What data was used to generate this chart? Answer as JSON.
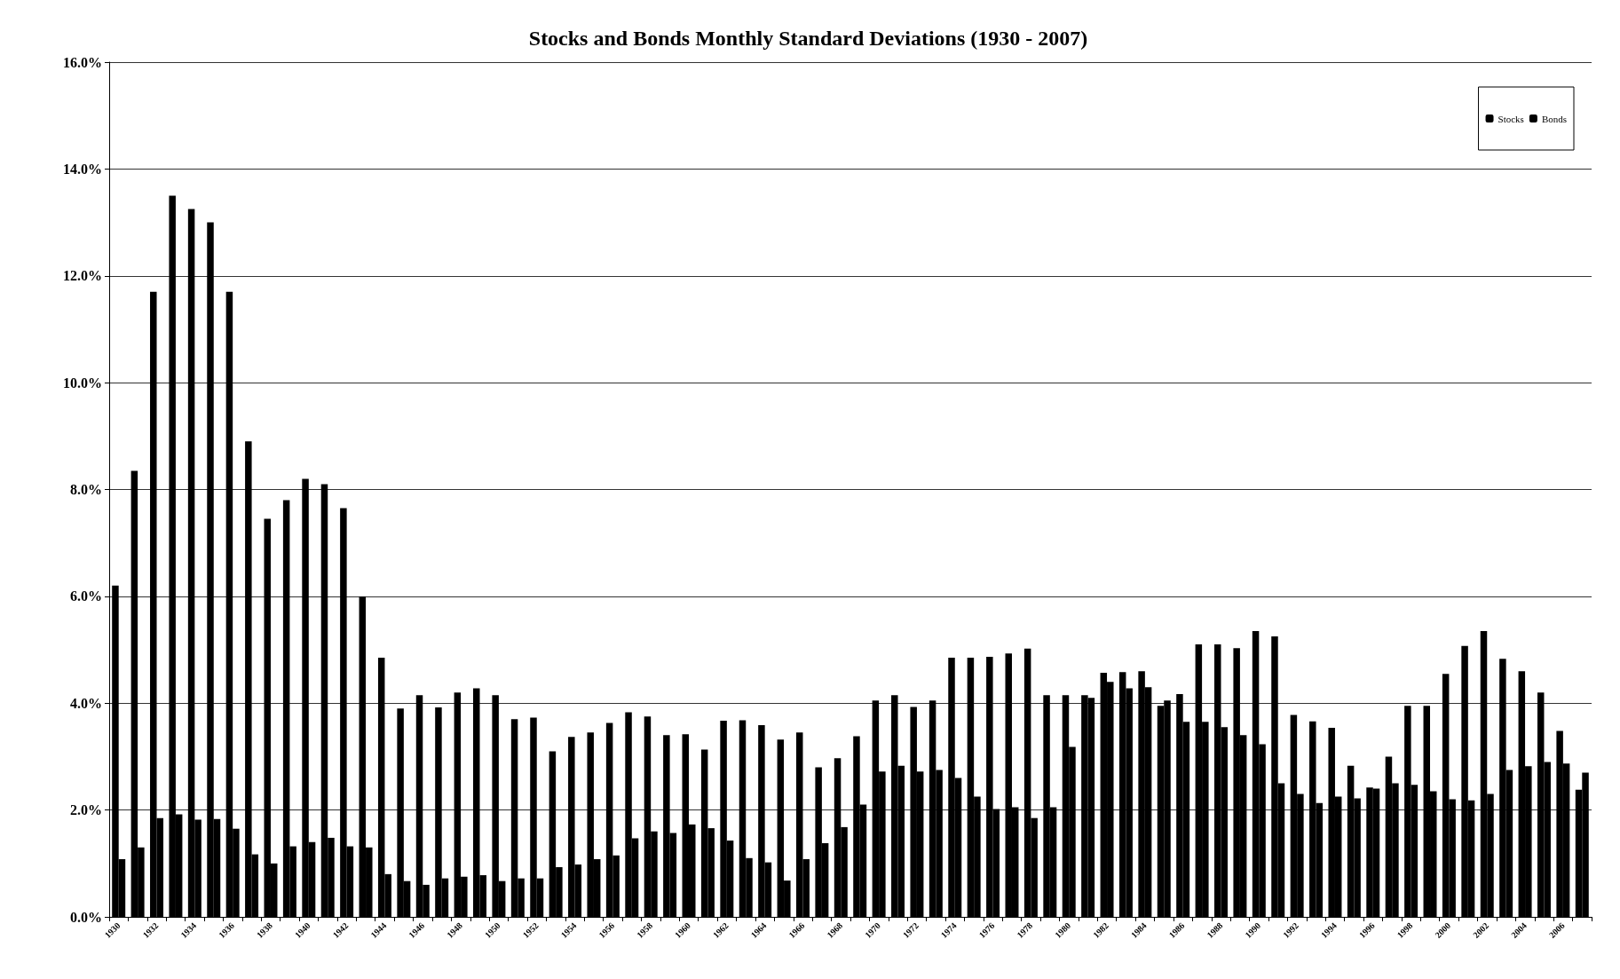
{
  "chart_data": {
    "type": "bar",
    "title": "Stocks and Bonds Monthly Standard Deviations (1930 - 2007)",
    "categories": [
      "1930",
      null,
      "1932",
      null,
      "1934",
      null,
      "1936",
      null,
      "1938",
      null,
      "1940",
      null,
      "1942",
      null,
      "1944",
      null,
      "1946",
      null,
      "1948",
      null,
      "1950",
      null,
      "1952",
      null,
      "1954",
      null,
      "1956",
      null,
      "1958",
      null,
      "1960",
      null,
      "1962",
      null,
      "1964",
      null,
      "1966",
      null,
      "1968",
      null,
      "1970",
      null,
      "1972",
      null,
      "1974",
      null,
      "1976",
      null,
      "1978",
      null,
      "1980",
      null,
      "1982",
      null,
      "1984",
      null,
      "1986",
      null,
      "1988",
      null,
      "1990",
      null,
      "1992",
      null,
      "1994",
      null,
      "1996",
      null,
      "1998",
      null,
      "2000",
      null,
      "2002",
      null,
      "2004",
      null,
      "2006",
      null
    ],
    "series": [
      {
        "name": "Stocks",
        "color": "#000000",
        "values": [
          6.2,
          8.35,
          11.7,
          13.5,
          13.25,
          13.0,
          11.7,
          8.9,
          7.45,
          7.8,
          8.2,
          8.1,
          7.65,
          6.0,
          4.85,
          3.9,
          4.15,
          3.92,
          4.2,
          4.28,
          4.15,
          3.7,
          3.73,
          3.1,
          3.37,
          3.45,
          3.63,
          3.83,
          3.75,
          3.4,
          3.42,
          3.13,
          3.67,
          3.68,
          3.59,
          3.32,
          3.45,
          2.8,
          2.97,
          3.38,
          4.05,
          4.15,
          3.93,
          4.05,
          4.85,
          4.85,
          4.87,
          4.93,
          5.02,
          4.15,
          4.15,
          4.15,
          4.57,
          4.58,
          4.6,
          3.95,
          4.17,
          5.1,
          5.1,
          5.03,
          5.35,
          5.25,
          3.78,
          3.66,
          3.54,
          2.83,
          2.42,
          3.0,
          3.95,
          3.95,
          4.55,
          5.07,
          5.35,
          4.83,
          4.6,
          4.2,
          3.48,
          2.38
        ]
      },
      {
        "name": "Bonds",
        "color": "#000000",
        "values": [
          1.08,
          1.3,
          1.85,
          1.92,
          1.82,
          1.83,
          1.65,
          1.17,
          1.0,
          1.32,
          1.4,
          1.48,
          1.32,
          1.3,
          0.8,
          0.67,
          0.6,
          0.72,
          0.75,
          0.78,
          0.67,
          0.72,
          0.72,
          0.93,
          0.98,
          1.08,
          1.15,
          1.47,
          1.6,
          1.57,
          1.73,
          1.66,
          1.43,
          1.1,
          1.02,
          0.68,
          1.08,
          1.38,
          1.68,
          2.1,
          2.72,
          2.83,
          2.72,
          2.75,
          2.6,
          2.25,
          2.02,
          2.05,
          1.85,
          2.05,
          3.18,
          4.1,
          4.4,
          4.28,
          4.3,
          4.05,
          3.65,
          3.65,
          3.55,
          3.4,
          3.23,
          2.5,
          2.3,
          2.13,
          2.25,
          2.22,
          2.4,
          2.5,
          2.47,
          2.35,
          2.2,
          2.18,
          2.3,
          2.75,
          2.82,
          2.9,
          2.87,
          2.7
        ]
      }
    ],
    "ylim": [
      0,
      16
    ],
    "yticks": [
      {
        "value": 0,
        "label": "0.0%"
      },
      {
        "value": 2,
        "label": "2.0%"
      },
      {
        "value": 4,
        "label": "4.0%"
      },
      {
        "value": 6,
        "label": "6.0%"
      },
      {
        "value": 8,
        "label": "8.0%"
      },
      {
        "value": 10,
        "label": "10.0%"
      },
      {
        "value": 12,
        "label": "12.0%"
      },
      {
        "value": 14,
        "label": "14.0%"
      },
      {
        "value": 16,
        "label": "16.0%"
      }
    ],
    "grid": "y",
    "legend": "top right"
  }
}
